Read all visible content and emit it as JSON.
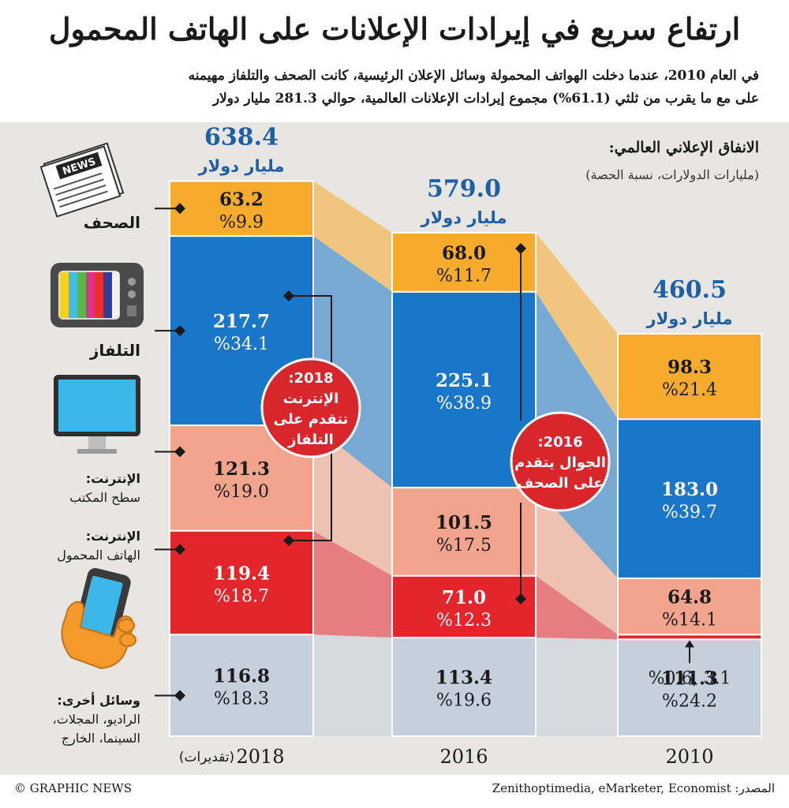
{
  "header": {
    "title": "ارتفاع سريع في إيرادات الإعلانات على الهاتف المحمول",
    "subtitle_line1": "في العام 2010، عندما دخلت الهواتف المحمولة وسائل الإعلان الرئيسية، كانت الصحف والتلفاز مهيمنه",
    "subtitle_line2": "على مع ما يقرب من ثلثي (61.1%) مجموع إيرادات الإعلانات العالمية، حوالي 281.3 مليار دولار"
  },
  "legend_note": {
    "title": "الانفاق الإعلاني العالمي:",
    "sub": "(مليارات الدولارات، نسبة الحصة)"
  },
  "categories_labels": {
    "newspapers": "الصحف",
    "tv": "التلفاز",
    "internet_desktop_1": "الإنترنت:",
    "internet_desktop_2": "سطح المكتب",
    "internet_mobile_1": "الإنترنت:",
    "internet_mobile_2": "الهاتف المحمول",
    "other_1": "وسائل أخرى:",
    "other_2": "الراديو، المجلات،",
    "other_3": "السينما، الخارج"
  },
  "icons": [
    "newspaper-icon",
    "tv-icon",
    "desktop-monitor-icon",
    "mobile-phone-in-hand-icon"
  ],
  "colors": {
    "newspapers": "#f6ab2c",
    "tv": "#1a76c9",
    "desktop": "#f3a48c",
    "mobile": "#e4262c",
    "other": "#c6cfdc",
    "total_text": "#1f5fa8",
    "callout": "#d9262c",
    "panel": "#e8e6e3"
  },
  "chart_data": {
    "type": "bar",
    "stacked": true,
    "unit": "مليار دولار",
    "categories": [
      "2018",
      "2016",
      "2010"
    ],
    "category_notes": [
      "(تقديرات)",
      "",
      ""
    ],
    "totals": [
      638.4,
      579.0,
      460.5
    ],
    "total_labels": [
      "638.4",
      "579.0",
      "460.5"
    ],
    "series": [
      {
        "key": "newspapers",
        "values": [
          63.2,
          68.0,
          98.3
        ],
        "value_labels": [
          "63.2",
          "68.0",
          "98.3"
        ],
        "share_labels": [
          "%9.9",
          "%11.7",
          "%21.4"
        ]
      },
      {
        "key": "tv",
        "values": [
          217.7,
          225.1,
          183.0
        ],
        "value_labels": [
          "217.7",
          "225.1",
          "183.0"
        ],
        "share_labels": [
          "%34.1",
          "%38.9",
          "%39.7"
        ]
      },
      {
        "key": "desktop",
        "values": [
          121.3,
          101.5,
          64.8
        ],
        "value_labels": [
          "121.3",
          "101.5",
          "64.8"
        ],
        "share_labels": [
          "%19.0",
          "%17.5",
          "%14.1"
        ]
      },
      {
        "key": "mobile",
        "values": [
          119.4,
          71.0,
          3.1
        ],
        "value_labels": [
          "119.4",
          "71.0",
          "3.1"
        ],
        "share_labels": [
          "%18.7",
          "%12.3",
          "%0.6"
        ]
      },
      {
        "key": "other",
        "values": [
          116.8,
          113.4,
          111.3
        ],
        "value_labels": [
          "116.8",
          "113.4",
          "111.3"
        ],
        "share_labels": [
          "%18.3",
          "%19.6",
          "%24.2"
        ]
      }
    ],
    "annotations": [
      {
        "line1": "2018:",
        "line2": "الإنترنت",
        "line3": "تتقدم على",
        "line4": "التلفاز"
      },
      {
        "line1": "2016:",
        "line2": "الجوال يتقدم",
        "line3": "على الصحف",
        "line4": ""
      }
    ]
  },
  "footer": {
    "credit": "© GRAPHIC NEWS",
    "source": "المصدر: Zenithoptimedia, eMarketer, Economist"
  }
}
